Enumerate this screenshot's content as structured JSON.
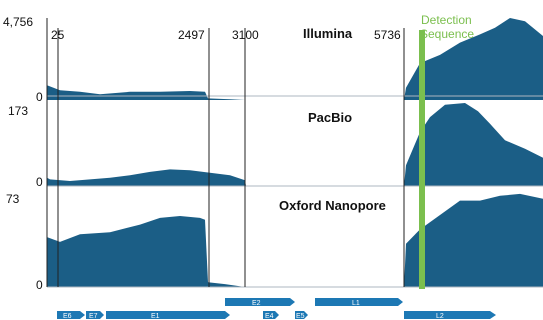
{
  "figure": {
    "panels": [
      {
        "title": "Illumina",
        "y_max_label": "4,756",
        "y_min_label": "0"
      },
      {
        "title": "PacBio",
        "y_max_label": "173",
        "y_min_label": "0"
      },
      {
        "title": "Oxford Nanopore",
        "y_max_label": "73",
        "y_min_label": "0"
      }
    ],
    "positions": [
      "25",
      "2497",
      "3100",
      "5736"
    ],
    "detection_label": [
      "Detection",
      "Sequence"
    ],
    "genes": [
      "E6",
      "E7",
      "E1",
      "E2",
      "E4",
      "E5",
      "L1",
      "L2"
    ],
    "colors": {
      "coverage": "#1b5e86",
      "detection": "#7bbf4e",
      "gene_arrow": "#1d78b4",
      "text": "#111111"
    }
  },
  "chart_data": {
    "type": "area",
    "x_positions_marked": [
      25,
      2497,
      3100,
      5736
    ],
    "series": [
      {
        "name": "Illumina",
        "y_max": 4756,
        "profile": [
          [
            0,
            0.43
          ],
          [
            3,
            0.43
          ],
          [
            8,
            0.32
          ],
          [
            14,
            0.32
          ],
          [
            26,
            0.2
          ],
          [
            40,
            0.18
          ],
          [
            60,
            0.12
          ],
          [
            80,
            0.1
          ],
          [
            100,
            0.07
          ],
          [
            130,
            0.1
          ],
          [
            160,
            0.1
          ],
          [
            190,
            0.11
          ],
          [
            205,
            0.1
          ],
          [
            208,
            0.02
          ],
          [
            230,
            0.01
          ],
          [
            245,
            0.0
          ],
          [
            404,
            0.0
          ],
          [
            406,
            0.15
          ],
          [
            420,
            0.45
          ],
          [
            440,
            0.55
          ],
          [
            460,
            0.7
          ],
          [
            480,
            0.8
          ],
          [
            495,
            0.88
          ],
          [
            510,
            1.0
          ],
          [
            525,
            0.96
          ],
          [
            543,
            0.78
          ]
        ]
      },
      {
        "name": "PacBio",
        "y_max": 173,
        "profile": [
          [
            0,
            0.32
          ],
          [
            3,
            0.32
          ],
          [
            8,
            0.22
          ],
          [
            14,
            0.12
          ],
          [
            30,
            0.1
          ],
          [
            50,
            0.08
          ],
          [
            70,
            0.06
          ],
          [
            90,
            0.08
          ],
          [
            110,
            0.1
          ],
          [
            130,
            0.13
          ],
          [
            150,
            0.17
          ],
          [
            170,
            0.2
          ],
          [
            190,
            0.19
          ],
          [
            210,
            0.16
          ],
          [
            230,
            0.13
          ],
          [
            245,
            0.07
          ],
          [
            246,
            0.0
          ],
          [
            404,
            0.0
          ],
          [
            406,
            0.25
          ],
          [
            420,
            0.65
          ],
          [
            430,
            0.83
          ],
          [
            445,
            0.98
          ],
          [
            465,
            1.0
          ],
          [
            478,
            0.9
          ],
          [
            490,
            0.75
          ],
          [
            505,
            0.55
          ],
          [
            525,
            0.45
          ],
          [
            543,
            0.34
          ]
        ]
      },
      {
        "name": "Oxford Nanopore",
        "y_max": 73,
        "profile": [
          [
            0,
            0.85
          ],
          [
            3,
            0.85
          ],
          [
            8,
            0.8
          ],
          [
            14,
            0.52
          ],
          [
            40,
            0.52
          ],
          [
            60,
            0.47
          ],
          [
            80,
            0.55
          ],
          [
            110,
            0.57
          ],
          [
            140,
            0.65
          ],
          [
            160,
            0.72
          ],
          [
            180,
            0.74
          ],
          [
            200,
            0.72
          ],
          [
            205,
            0.7
          ],
          [
            208,
            0.05
          ],
          [
            225,
            0.03
          ],
          [
            245,
            0.0
          ],
          [
            404,
            0.0
          ],
          [
            406,
            0.45
          ],
          [
            420,
            0.6
          ],
          [
            440,
            0.75
          ],
          [
            460,
            0.9
          ],
          [
            480,
            0.9
          ],
          [
            500,
            0.95
          ],
          [
            520,
            0.97
          ],
          [
            543,
            0.92
          ]
        ]
      }
    ],
    "detection_sequence_position": 422
  }
}
